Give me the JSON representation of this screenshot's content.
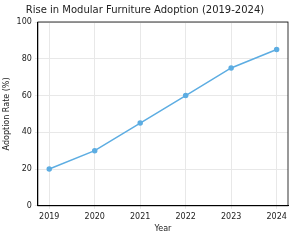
{
  "chart_data": {
    "type": "line",
    "title": "Rise in Modular Furniture Adoption (2019-2024)",
    "x_label": "Year",
    "y_label": "Adoption Rate (%)",
    "x": [
      2019,
      2020,
      2021,
      2022,
      2023,
      2024
    ],
    "values": [
      20,
      30,
      45,
      60,
      75,
      85
    ],
    "color": "#5dade2",
    "marker": "o",
    "line_style": "solid",
    "xlim": [
      2018.75,
      2024.25
    ],
    "xticks": [
      2019,
      2020,
      2021,
      2022,
      2023,
      2024
    ],
    "ylim": [
      0,
      100
    ],
    "yticks": [
      0,
      20,
      40,
      60,
      80,
      100
    ],
    "grid": true
  }
}
